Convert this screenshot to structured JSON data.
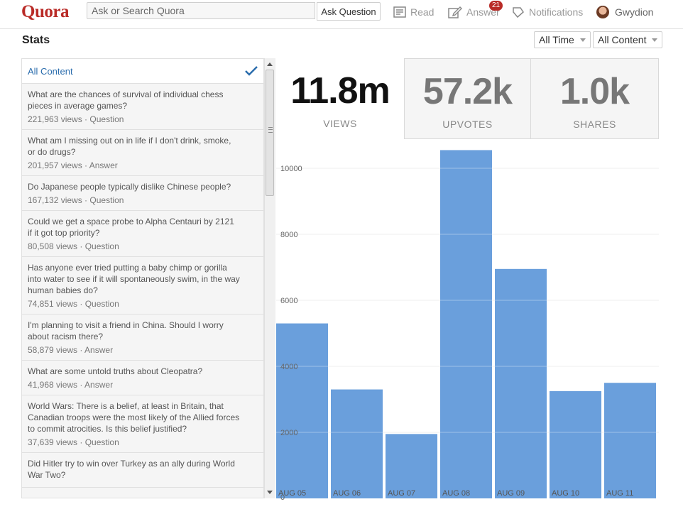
{
  "header": {
    "logo": "Quora",
    "search_placeholder": "Ask or Search Quora",
    "ask_button": "Ask Question",
    "nav": {
      "read": "Read",
      "answer": "Answer",
      "answer_badge": "21",
      "notifications": "Notifications",
      "user": "Gwydion"
    }
  },
  "stats": {
    "title": "Stats",
    "time_filter": "All Time",
    "content_filter": "All Content"
  },
  "list": {
    "all_content": "All Content",
    "items": [
      {
        "question": "What are the chances of survival of individual chess pieces in average games?",
        "meta": "221,963 views · Question"
      },
      {
        "question": "What am I missing out on in life if I don't drink, smoke, or do drugs?",
        "meta": "201,957 views · Answer"
      },
      {
        "question": "Do Japanese people typically dislike Chinese people?",
        "meta": "167,132 views · Question"
      },
      {
        "question": "Could we get a space probe to Alpha Centauri by 2121 if it got top priority?",
        "meta": "80,508 views · Question"
      },
      {
        "question": "Has anyone ever tried putting a baby chimp or gorilla into water to see if it will spontaneously swim, in the way human babies do?",
        "meta": "74,851 views · Question"
      },
      {
        "question": "I'm planning to visit a friend in China. Should I worry about racism there?",
        "meta": "58,879 views · Answer"
      },
      {
        "question": "What are some untold truths about Cleopatra?",
        "meta": "41,968 views · Answer"
      },
      {
        "question": "World Wars: There is a belief, at least in Britain, that Canadian troops were the most likely of the Allied forces to commit atrocities. Is this belief justified?",
        "meta": "37,639 views · Question"
      },
      {
        "question": "Did Hitler try to win over Turkey as an ally during World War Two?",
        "meta": ""
      }
    ]
  },
  "summary": {
    "views": {
      "value": "11.8m",
      "label": "VIEWS"
    },
    "upvotes": {
      "value": "57.2k",
      "label": "UPVOTES"
    },
    "shares": {
      "value": "1.0k",
      "label": "SHARES"
    }
  },
  "colors": {
    "brand": "#b92b27",
    "bar": "#6a9fdc",
    "link": "#2b6dad"
  },
  "chart_data": {
    "type": "bar",
    "categories": [
      "AUG 05",
      "AUG 06",
      "AUG 07",
      "AUG 08",
      "AUG 09",
      "AUG 10",
      "AUG 11"
    ],
    "values": [
      5300,
      3300,
      1950,
      10550,
      6950,
      3250,
      3500
    ],
    "yticks": [
      0,
      2000,
      4000,
      6000,
      8000,
      10000
    ],
    "ylim": [
      0,
      10500
    ],
    "grid": true
  }
}
